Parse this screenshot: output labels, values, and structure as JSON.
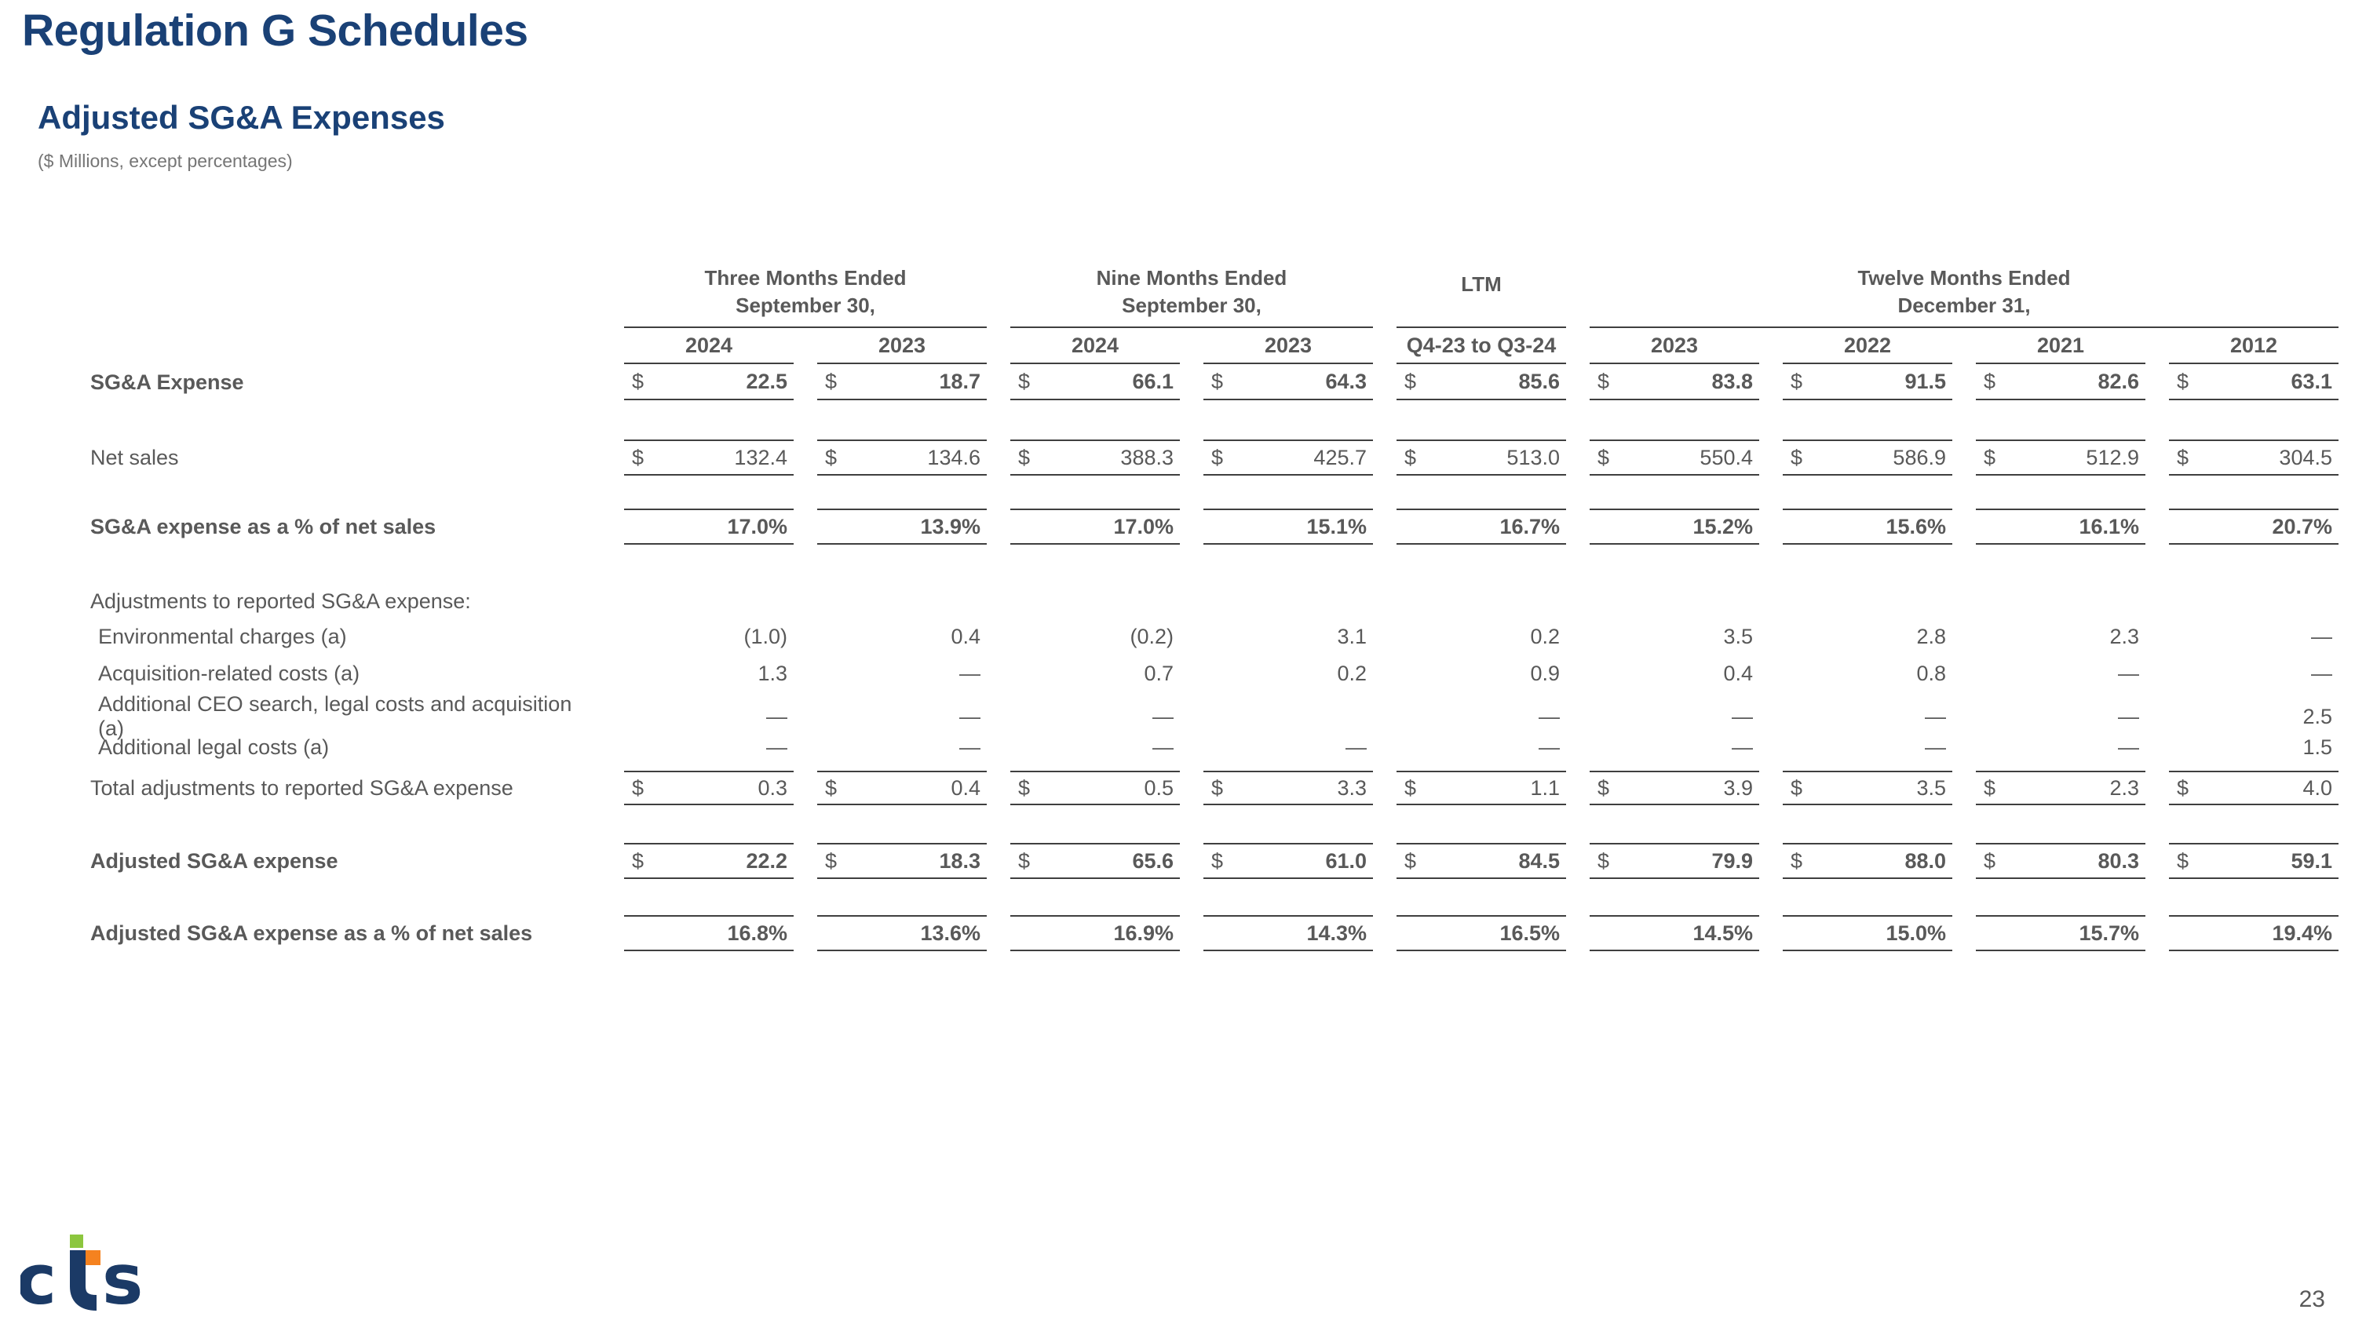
{
  "header": {
    "title": "Regulation G Schedules",
    "subtitle": "Adjusted SG&A Expenses",
    "units_note": "($ Millions, except percentages)"
  },
  "table": {
    "currency_symbol": "$",
    "groups": [
      {
        "label": "Three Months Ended\nSeptember 30,",
        "span": 2
      },
      {
        "label": "Nine Months Ended\nSeptember 30,",
        "span": 2
      },
      {
        "label": "LTM",
        "span": 1
      },
      {
        "label": "Twelve Months Ended\nDecember 31,",
        "span": 4
      }
    ],
    "columns": [
      "2024",
      "2023",
      "2024",
      "2023",
      "Q4-23 to Q3-24",
      "2023",
      "2022",
      "2021",
      "2012"
    ],
    "rows": [
      {
        "name": "sga-expense",
        "label": "SG&A Expense",
        "bold": true,
        "dollar": true,
        "rules": "b",
        "values": [
          "22.5",
          "18.7",
          "66.1",
          "64.3",
          "85.6",
          "83.8",
          "91.5",
          "82.6",
          "63.1"
        ]
      },
      {
        "name": "net-sales",
        "label": "Net sales",
        "bold": false,
        "dollar": true,
        "rules": "tb",
        "values": [
          "132.4",
          "134.6",
          "388.3",
          "425.7",
          "513.0",
          "550.4",
          "586.9",
          "512.9",
          "304.5"
        ]
      },
      {
        "name": "sga-percent",
        "label": "SG&A expense as a % of net sales",
        "bold": true,
        "dollar": false,
        "rules": "tb",
        "values": [
          "17.0%",
          "13.9%",
          "17.0%",
          "15.1%",
          "16.7%",
          "15.2%",
          "15.6%",
          "16.1%",
          "20.7%"
        ]
      },
      {
        "name": "adjustments-header",
        "label": "Adjustments to reported SG&A expense:",
        "section": true,
        "values": []
      },
      {
        "name": "environmental-charges",
        "label": "Environmental charges (a)",
        "indent": true,
        "rules": "none",
        "values": [
          "(1.0)",
          "0.4",
          "(0.2)",
          "3.1",
          "0.2",
          "3.5",
          "2.8",
          "2.3",
          "—"
        ]
      },
      {
        "name": "acquisition-costs",
        "label": "Acquisition-related costs (a)",
        "indent": true,
        "rules": "none",
        "values": [
          "1.3",
          "—",
          "0.7",
          "0.2",
          "0.9",
          "0.4",
          "0.8",
          "—",
          "—"
        ]
      },
      {
        "name": "ceo-search-costs",
        "label": "Additional CEO search, legal costs and acquisition (a)",
        "indent": true,
        "rules": "none",
        "values": [
          "—",
          "—",
          "—",
          "",
          "—",
          "—",
          "—",
          "—",
          "2.5"
        ]
      },
      {
        "name": "additional-legal-costs",
        "label": "Additional legal costs (a)",
        "indent": true,
        "rules": "none",
        "values": [
          "—",
          "—",
          "—",
          "—",
          "—",
          "—",
          "—",
          "—",
          "1.5"
        ]
      },
      {
        "name": "total-adjustments",
        "label": "Total adjustments to reported SG&A expense",
        "bold": false,
        "dollar": true,
        "rules": "tb",
        "values": [
          "0.3",
          "0.4",
          "0.5",
          "3.3",
          "1.1",
          "3.9",
          "3.5",
          "2.3",
          "4.0"
        ]
      },
      {
        "name": "adjusted-sga",
        "label": "Adjusted SG&A expense",
        "bold": true,
        "dollar": true,
        "rules": "tb",
        "values": [
          "22.2",
          "18.3",
          "65.6",
          "61.0",
          "84.5",
          "79.9",
          "88.0",
          "80.3",
          "59.1"
        ]
      },
      {
        "name": "adjusted-sga-percent",
        "label": "Adjusted SG&A expense as a % of net sales",
        "bold": true,
        "dollar": false,
        "rules": "tb",
        "values": [
          "16.8%",
          "13.6%",
          "16.9%",
          "14.3%",
          "16.5%",
          "14.5%",
          "15.0%",
          "15.7%",
          "19.4%"
        ]
      }
    ]
  },
  "footer": {
    "page_number": "23",
    "logo_text": "cts"
  },
  "colors": {
    "accent_navy": "#1a4176",
    "logo_navy": "#1b3a66",
    "logo_green": "#8CC63E",
    "logo_orange": "#F5821F",
    "table_text": "#595959"
  }
}
